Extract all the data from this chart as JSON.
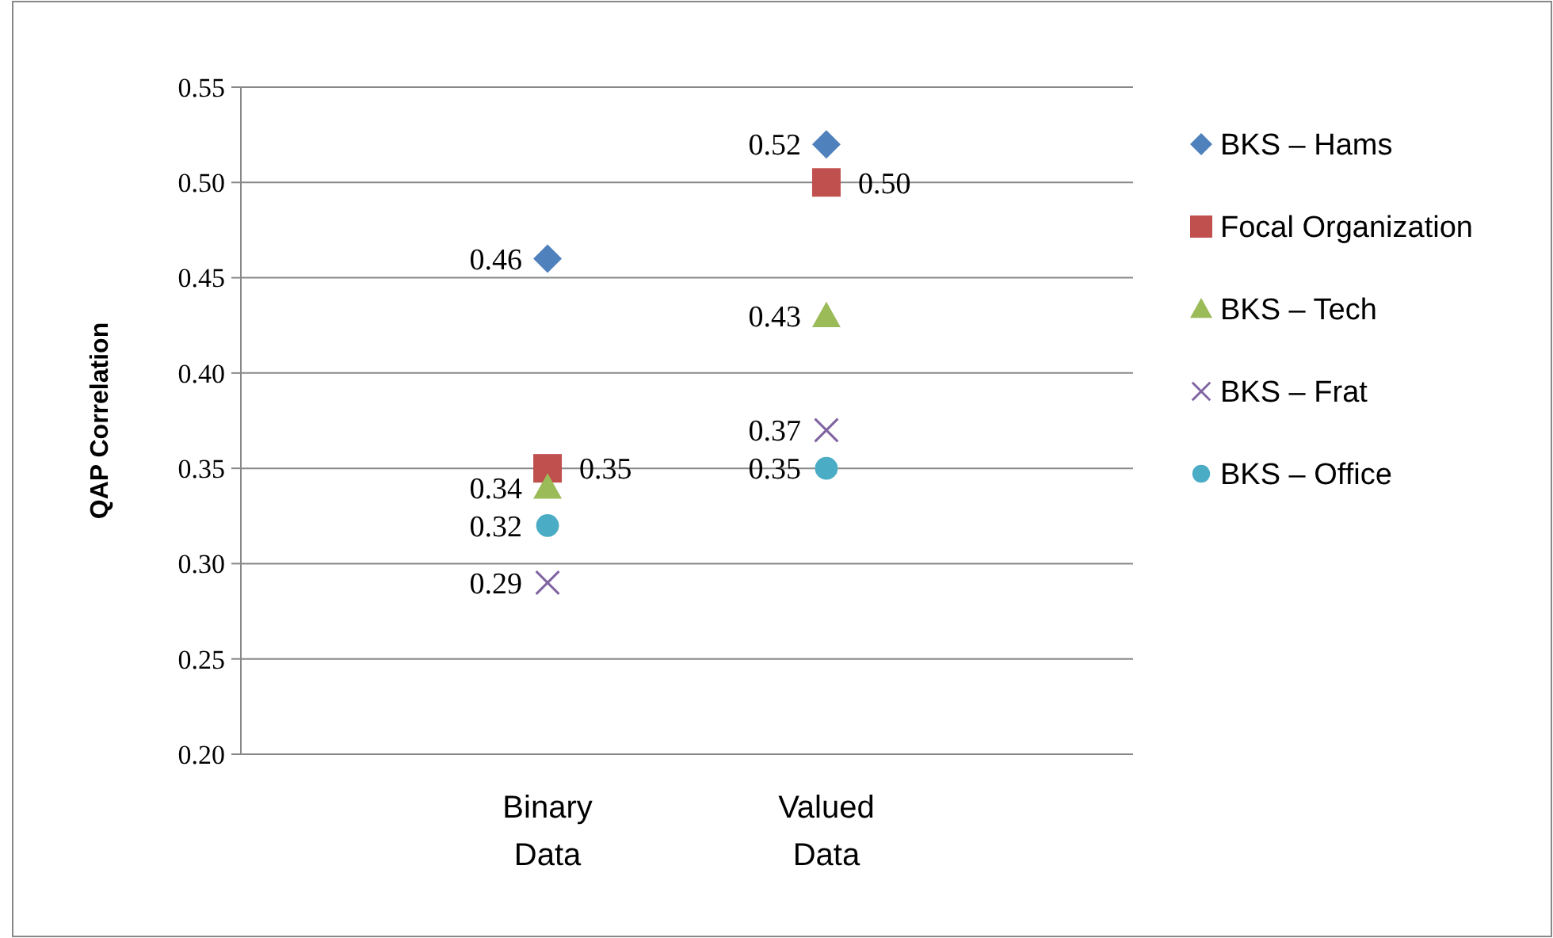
{
  "chart_data": {
    "type": "scatter",
    "ylabel": "QAP Correlation",
    "categories": [
      "Binary Data",
      "Valued Data"
    ],
    "ylim": [
      0.2,
      0.55
    ],
    "yticks": [
      "0.20",
      "0.25",
      "0.30",
      "0.35",
      "0.40",
      "0.45",
      "0.50",
      "0.55"
    ],
    "grid": "y",
    "legend": "right",
    "series": [
      {
        "name": "BKS – Hams",
        "color": "#4f81bd",
        "marker": "diamond",
        "values": [
          0.46,
          0.52
        ],
        "value_labels": [
          "0.46",
          "0.52"
        ]
      },
      {
        "name": "Focal Organization",
        "color": "#c0504d",
        "marker": "square",
        "values": [
          0.35,
          0.5
        ],
        "value_labels": [
          "0.35",
          "0.50"
        ]
      },
      {
        "name": "BKS – Tech",
        "color": "#9bbb59",
        "marker": "triangle",
        "values": [
          0.34,
          0.43
        ],
        "value_labels": [
          "0.34",
          "0.43"
        ]
      },
      {
        "name": "BKS – Frat",
        "color": "#8064a2",
        "marker": "cross",
        "values": [
          0.29,
          0.37
        ],
        "value_labels": [
          "0.29",
          "0.37"
        ]
      },
      {
        "name": "BKS – Office",
        "color": "#4bacc6",
        "marker": "circle",
        "values": [
          0.32,
          0.35
        ],
        "value_labels": [
          "0.32",
          "0.35"
        ]
      }
    ]
  }
}
